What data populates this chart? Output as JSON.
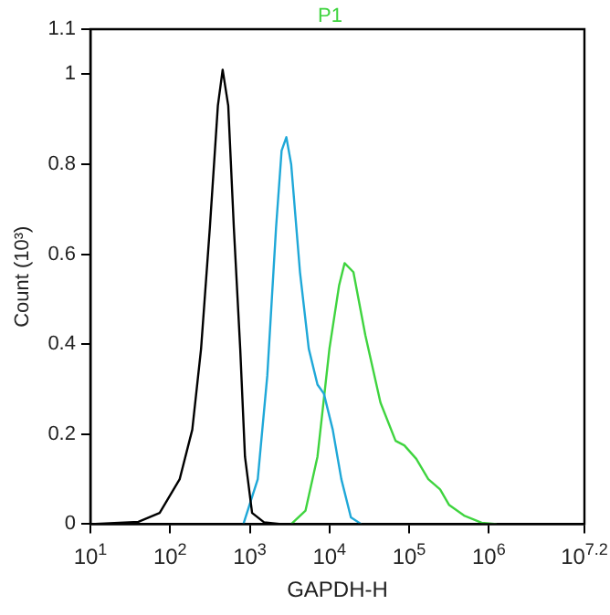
{
  "chart_data": {
    "type": "line",
    "xlabel": "GAPDH-H",
    "ylabel": "Count (10³)",
    "log": "x",
    "legend": "top",
    "grid": false,
    "marker": "none",
    "xlim": [
      10,
      15848932
    ],
    "xticks": [
      {
        "value": 10,
        "label": "10$^{1}$"
      },
      {
        "value": 100,
        "label": "10$^{2}$"
      },
      {
        "value": 1000,
        "label": "10$^{3}$"
      },
      {
        "value": 10000,
        "label": "10$^{4}$"
      },
      {
        "value": 100000,
        "label": "10$^{5}$"
      },
      {
        "value": 1000000,
        "label": "10$^{6}$"
      },
      {
        "value": 15848932,
        "label": "10$^{7.2}$"
      }
    ],
    "ylim": [
      0,
      1.1
    ],
    "yticks": [
      0,
      0.2,
      0.4,
      0.6,
      0.8,
      1,
      1.1
    ],
    "series": [
      {
        "color": "#000000",
        "x": [
          10,
          40,
          74,
          132,
          190,
          245,
          316,
          398,
          457,
          537,
          631,
          759,
          871,
          1070,
          1510,
          2510
        ],
        "values": [
          0,
          0.005,
          0.025,
          0.1,
          0.21,
          0.39,
          0.66,
          0.93,
          1.01,
          0.93,
          0.66,
          0.39,
          0.15,
          0.025,
          0.004,
          0
        ]
      },
      {
        "color": "#1fa8d8",
        "x": [
          832,
          1260,
          1660,
          2140,
          2510,
          2880,
          3310,
          4270,
          5500,
          7080,
          8510,
          11000,
          14100,
          18600,
          25100
        ],
        "values": [
          0,
          0.1,
          0.33,
          0.66,
          0.83,
          0.86,
          0.8,
          0.56,
          0.39,
          0.31,
          0.29,
          0.21,
          0.1,
          0.015,
          0
        ]
      },
      {
        "name": "P1",
        "color": "#3fd43f",
        "x": [
          3310,
          5010,
          7080,
          10000,
          13200,
          15500,
          20000,
          28200,
          43700,
          67600,
          87100,
          123000,
          174000,
          245000,
          316000,
          490000,
          813000,
          1260000
        ],
        "values": [
          0,
          0.03,
          0.15,
          0.39,
          0.53,
          0.58,
          0.56,
          0.42,
          0.27,
          0.185,
          0.175,
          0.145,
          0.1,
          0.077,
          0.043,
          0.019,
          0.003,
          0
        ]
      }
    ]
  }
}
